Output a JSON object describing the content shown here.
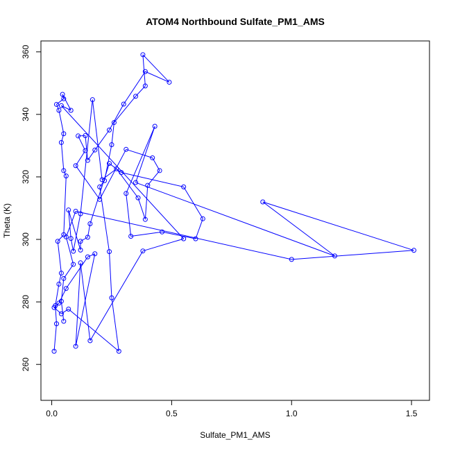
{
  "chart_data": {
    "type": "scatter",
    "title": "ATOM4 Northbound Sulfate_PM1_AMS",
    "xlabel": "Sulfate_PM1_AMS",
    "ylabel": "Theta (K)",
    "xlim": [
      -0.045,
      1.575
    ],
    "ylim": [
      248.5,
      363.5
    ],
    "xticks": [
      0.0,
      0.5,
      1.0,
      1.5
    ],
    "xtick_labels": [
      "0.0",
      "0.5",
      "1.0",
      "1.5"
    ],
    "yticks": [
      260,
      280,
      300,
      320,
      340,
      360
    ],
    "ytick_labels": [
      "260",
      "280",
      "300",
      "320",
      "340",
      "360"
    ],
    "grid": false,
    "connected": true,
    "marker": "open-circle",
    "color": "#0000ff",
    "series": [
      {
        "values": [
          {
            "x": 0.01,
            "y": 264.2
          },
          {
            "x": 0.02,
            "y": 273.0
          },
          {
            "x": 0.015,
            "y": 278.8
          },
          {
            "x": 0.03,
            "y": 285.7
          },
          {
            "x": 0.04,
            "y": 289.2
          },
          {
            "x": 0.025,
            "y": 299.4
          },
          {
            "x": 0.05,
            "y": 301.5
          },
          {
            "x": 0.06,
            "y": 320.3
          },
          {
            "x": 0.05,
            "y": 322.0
          },
          {
            "x": 0.04,
            "y": 331.0
          },
          {
            "x": 0.05,
            "y": 333.8
          },
          {
            "x": 0.03,
            "y": 341.3
          },
          {
            "x": 0.02,
            "y": 343.2
          },
          {
            "x": 0.05,
            "y": 345.0
          },
          {
            "x": 0.045,
            "y": 346.4
          },
          {
            "x": 0.08,
            "y": 341.3
          },
          {
            "x": 0.04,
            "y": 342.8
          },
          {
            "x": 0.55,
            "y": 300.2
          },
          {
            "x": 0.38,
            "y": 296.3
          },
          {
            "x": 0.16,
            "y": 267.6
          },
          {
            "x": 0.12,
            "y": 292.5
          },
          {
            "x": 0.1,
            "y": 265.8
          },
          {
            "x": 0.18,
            "y": 295.4
          },
          {
            "x": 0.15,
            "y": 294.4
          },
          {
            "x": 0.06,
            "y": 284.3
          },
          {
            "x": 0.03,
            "y": 279.6
          },
          {
            "x": 0.01,
            "y": 278.2
          },
          {
            "x": 0.04,
            "y": 276.2
          },
          {
            "x": 0.07,
            "y": 277.7
          },
          {
            "x": 0.28,
            "y": 264.2
          },
          {
            "x": 0.25,
            "y": 281.3
          },
          {
            "x": 0.24,
            "y": 296.1
          },
          {
            "x": 0.2,
            "y": 316.8
          },
          {
            "x": 0.22,
            "y": 318.8
          },
          {
            "x": 0.25,
            "y": 330.3
          },
          {
            "x": 0.26,
            "y": 337.4
          },
          {
            "x": 0.35,
            "y": 345.8
          },
          {
            "x": 0.39,
            "y": 349.1
          },
          {
            "x": 0.38,
            "y": 359.1
          },
          {
            "x": 0.49,
            "y": 350.3
          },
          {
            "x": 0.39,
            "y": 353.7
          },
          {
            "x": 0.3,
            "y": 343.3
          },
          {
            "x": 0.24,
            "y": 335.0
          },
          {
            "x": 0.18,
            "y": 328.6
          },
          {
            "x": 0.15,
            "y": 325.3
          },
          {
            "x": 0.14,
            "y": 333.2
          },
          {
            "x": 0.11,
            "y": 333.1
          },
          {
            "x": 0.14,
            "y": 328.4
          },
          {
            "x": 0.1,
            "y": 323.6
          },
          {
            "x": 0.2,
            "y": 312.8
          },
          {
            "x": 0.31,
            "y": 328.8
          },
          {
            "x": 0.42,
            "y": 326.1
          },
          {
            "x": 0.45,
            "y": 322.0
          },
          {
            "x": 0.4,
            "y": 317.3
          },
          {
            "x": 0.39,
            "y": 306.4
          },
          {
            "x": 0.36,
            "y": 313.3
          },
          {
            "x": 0.27,
            "y": 322.6
          },
          {
            "x": 0.21,
            "y": 319.1
          },
          {
            "x": 0.17,
            "y": 344.7
          },
          {
            "x": 0.12,
            "y": 308.2
          },
          {
            "x": 0.09,
            "y": 296.2
          },
          {
            "x": 0.08,
            "y": 300.3
          },
          {
            "x": 0.07,
            "y": 309.4
          },
          {
            "x": 0.12,
            "y": 296.6
          },
          {
            "x": 0.12,
            "y": 299.4
          },
          {
            "x": 0.15,
            "y": 300.7
          },
          {
            "x": 0.16,
            "y": 305.0
          },
          {
            "x": 0.24,
            "y": 324.3
          },
          {
            "x": 0.29,
            "y": 321.4
          },
          {
            "x": 0.55,
            "y": 316.8
          },
          {
            "x": 0.63,
            "y": 306.6
          },
          {
            "x": 0.6,
            "y": 300.2
          },
          {
            "x": 0.46,
            "y": 302.4
          },
          {
            "x": 0.33,
            "y": 301.0
          },
          {
            "x": 0.31,
            "y": 314.7
          },
          {
            "x": 0.43,
            "y": 336.2
          },
          {
            "x": 0.35,
            "y": 318.2
          },
          {
            "x": 1.18,
            "y": 294.7
          },
          {
            "x": 0.88,
            "y": 312.0
          },
          {
            "x": 1.51,
            "y": 296.5
          },
          {
            "x": 1.0,
            "y": 293.6
          },
          {
            "x": 0.1,
            "y": 309.0
          },
          {
            "x": 0.06,
            "y": 300.8
          },
          {
            "x": 0.09,
            "y": 292.0
          },
          {
            "x": 0.05,
            "y": 287.5
          },
          {
            "x": 0.04,
            "y": 280.2
          },
          {
            "x": 0.05,
            "y": 273.8
          }
        ]
      }
    ]
  }
}
